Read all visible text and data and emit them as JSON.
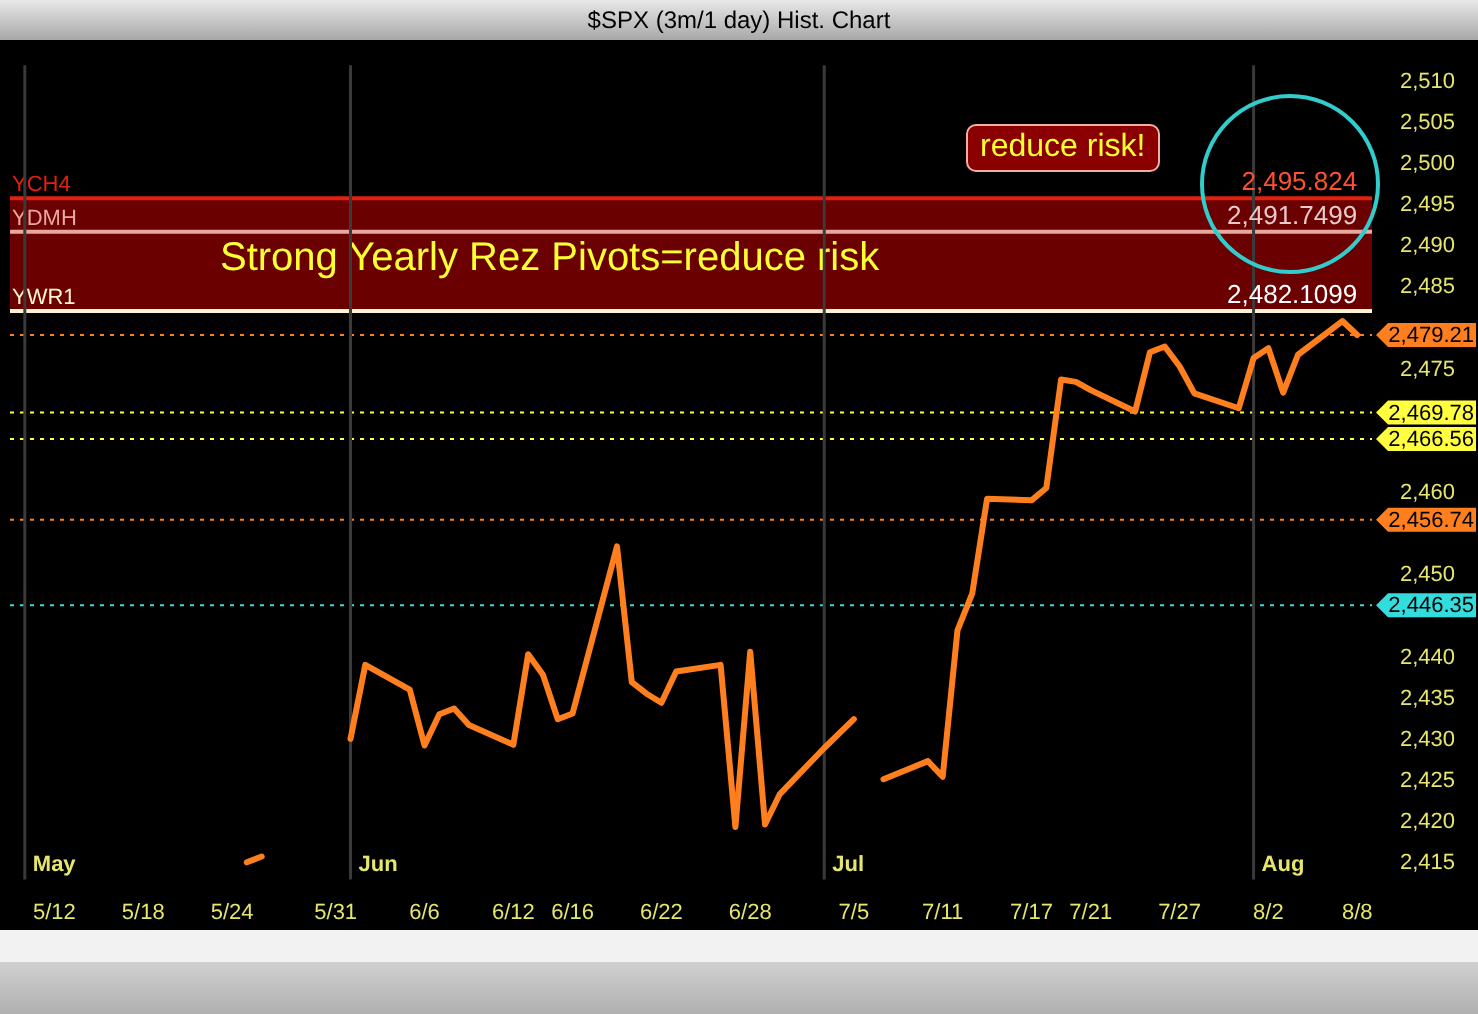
{
  "chart_data": {
    "type": "line",
    "title": "$SPX (3m/1 day) Hist. Chart",
    "x": [
      "--05-25",
      "--05-26",
      "--05-30",
      "--05-31",
      "--06-01",
      "--06-02",
      "--06-05",
      "--06-06",
      "--06-07",
      "--06-08",
      "--06-09",
      "--06-12",
      "--06-13",
      "--06-14",
      "--06-15",
      "--06-16",
      "--06-19",
      "--06-20",
      "--06-21",
      "--06-22",
      "--06-23",
      "--06-26",
      "--06-27",
      "--06-28",
      "--06-29",
      "--06-30",
      "--07-03",
      "--07-05",
      "--07-06",
      "--07-07",
      "--07-10",
      "--07-11",
      "--07-12",
      "--07-13",
      "--07-14",
      "--07-17",
      "--07-18",
      "--07-19",
      "--07-20",
      "--07-21",
      "--07-24",
      "--07-25",
      "--07-26",
      "--07-27",
      "--07-28",
      "--07-31",
      "--08-01",
      "--08-02",
      "--08-03",
      "--08-04",
      "--08-07",
      "--08-08"
    ],
    "series": [
      {
        "color": "#ff7f1e",
        "values": [
          2415.1,
          2415.8,
          null,
          null,
          2430.1,
          2439.1,
          2436.1,
          2429.3,
          2433.1,
          2433.8,
          2431.8,
          2429.4,
          2440.4,
          2437.9,
          2432.5,
          2433.2,
          2453.5,
          2437.0,
          2435.6,
          2434.5,
          2438.3,
          2439.1,
          2419.4,
          2440.7,
          2419.7,
          2423.4,
          2429.0,
          2432.5,
          null,
          2425.2,
          2427.4,
          2425.5,
          2443.3,
          2447.8,
          2459.3,
          2459.1,
          2460.6,
          2473.8,
          2473.5,
          2472.5,
          2469.9,
          2477.1,
          2477.8,
          2475.4,
          2472.1,
          2470.3,
          2476.4,
          2477.6,
          2472.2,
          2476.8,
          2480.9,
          2479.2
        ]
      }
    ],
    "xlim": [
      "--05-09",
      "--08-09"
    ],
    "xticks": [
      {
        "value": "--05-12",
        "label": "5/12"
      },
      {
        "value": "--05-18",
        "label": "5/18"
      },
      {
        "value": "--05-24",
        "label": "5/24"
      },
      {
        "value": "--05-31",
        "label": "5/31"
      },
      {
        "value": "--06-06",
        "label": "6/6"
      },
      {
        "value": "--06-12",
        "label": "6/12"
      },
      {
        "value": "--06-16",
        "label": "6/16"
      },
      {
        "value": "--06-22",
        "label": "6/22"
      },
      {
        "value": "--06-28",
        "label": "6/28"
      },
      {
        "value": "--07-05",
        "label": "7/5"
      },
      {
        "value": "--07-11",
        "label": "7/11"
      },
      {
        "value": "--07-17",
        "label": "7/17"
      },
      {
        "value": "--07-21",
        "label": "7/21"
      },
      {
        "value": "--07-27",
        "label": "7/27"
      },
      {
        "value": "--08-02",
        "label": "8/2"
      },
      {
        "value": "--08-08",
        "label": "8/8"
      }
    ],
    "ylim": [
      2413,
      2512
    ],
    "yticks": [
      {
        "value": 2415,
        "label": "2,415"
      },
      {
        "value": 2420,
        "label": "2,420"
      },
      {
        "value": 2425,
        "label": "2,425"
      },
      {
        "value": 2430,
        "label": "2,430"
      },
      {
        "value": 2435,
        "label": "2,435"
      },
      {
        "value": 2440,
        "label": "2,440"
      },
      {
        "value": 2450,
        "label": "2,450"
      },
      {
        "value": 2460,
        "label": "2,460"
      },
      {
        "value": 2475,
        "label": "2,475"
      },
      {
        "value": 2485,
        "label": "2,485"
      },
      {
        "value": 2490,
        "label": "2,490"
      },
      {
        "value": 2495,
        "label": "2,495"
      },
      {
        "value": 2500,
        "label": "2,500"
      },
      {
        "value": 2505,
        "label": "2,505"
      },
      {
        "value": 2510,
        "label": "2,510"
      }
    ],
    "bands": [
      {
        "axis": "y",
        "from": 2482.1099,
        "to": 2495.824,
        "label": "Strong Yearly Rez Pivots=reduce risk",
        "color": "#6a0000"
      }
    ],
    "ref_lines": [
      {
        "axis": "y",
        "value": 2495.824,
        "label": "YCH4",
        "color": "#e02010"
      },
      {
        "axis": "y",
        "value": 2491.7499,
        "label": "YDMH",
        "color": "#e8a8a0"
      },
      {
        "axis": "y",
        "value": 2482.1099,
        "label": "YWR1",
        "color": "#fff4d0"
      },
      {
        "axis": "y",
        "value": 2479.21,
        "label": "2,479.21",
        "color": "#ff7f1e",
        "line_style": "dotted"
      },
      {
        "axis": "y",
        "value": 2469.78,
        "label": "2,469.78",
        "color": "#ffff40",
        "line_style": "dotted"
      },
      {
        "axis": "y",
        "value": 2466.56,
        "label": "2,466.56",
        "color": "#ffff40",
        "line_style": "dotted"
      },
      {
        "axis": "y",
        "value": 2456.74,
        "label": "2,456.74",
        "color": "#ff7f1e",
        "line_style": "dotted"
      },
      {
        "axis": "y",
        "value": 2446.35,
        "label": "2,446.35",
        "color": "#33dddd",
        "line_style": "dotted"
      },
      {
        "axis": "x",
        "value": "--05-10",
        "label": "May",
        "color": "#3a3a3a"
      },
      {
        "axis": "x",
        "value": "--06-01",
        "label": "Jun",
        "color": "#3a3a3a"
      },
      {
        "axis": "x",
        "value": "--07-03",
        "label": "Jul",
        "color": "#3a3a3a"
      },
      {
        "axis": "x",
        "value": "--08-01",
        "label": "Aug",
        "color": "#3a3a3a"
      }
    ],
    "annotations": [
      {
        "text": "2,495.824",
        "x": "--08-08",
        "y": 2495.824
      },
      {
        "text": "2,491.7499",
        "x": "--08-08",
        "y": 2491.7499
      },
      {
        "text": "2,482.1099",
        "x": "--08-08",
        "y": 2482.1099
      },
      "reduce risk!"
    ],
    "legend": false,
    "marker": "none",
    "line_style": "solid"
  }
}
